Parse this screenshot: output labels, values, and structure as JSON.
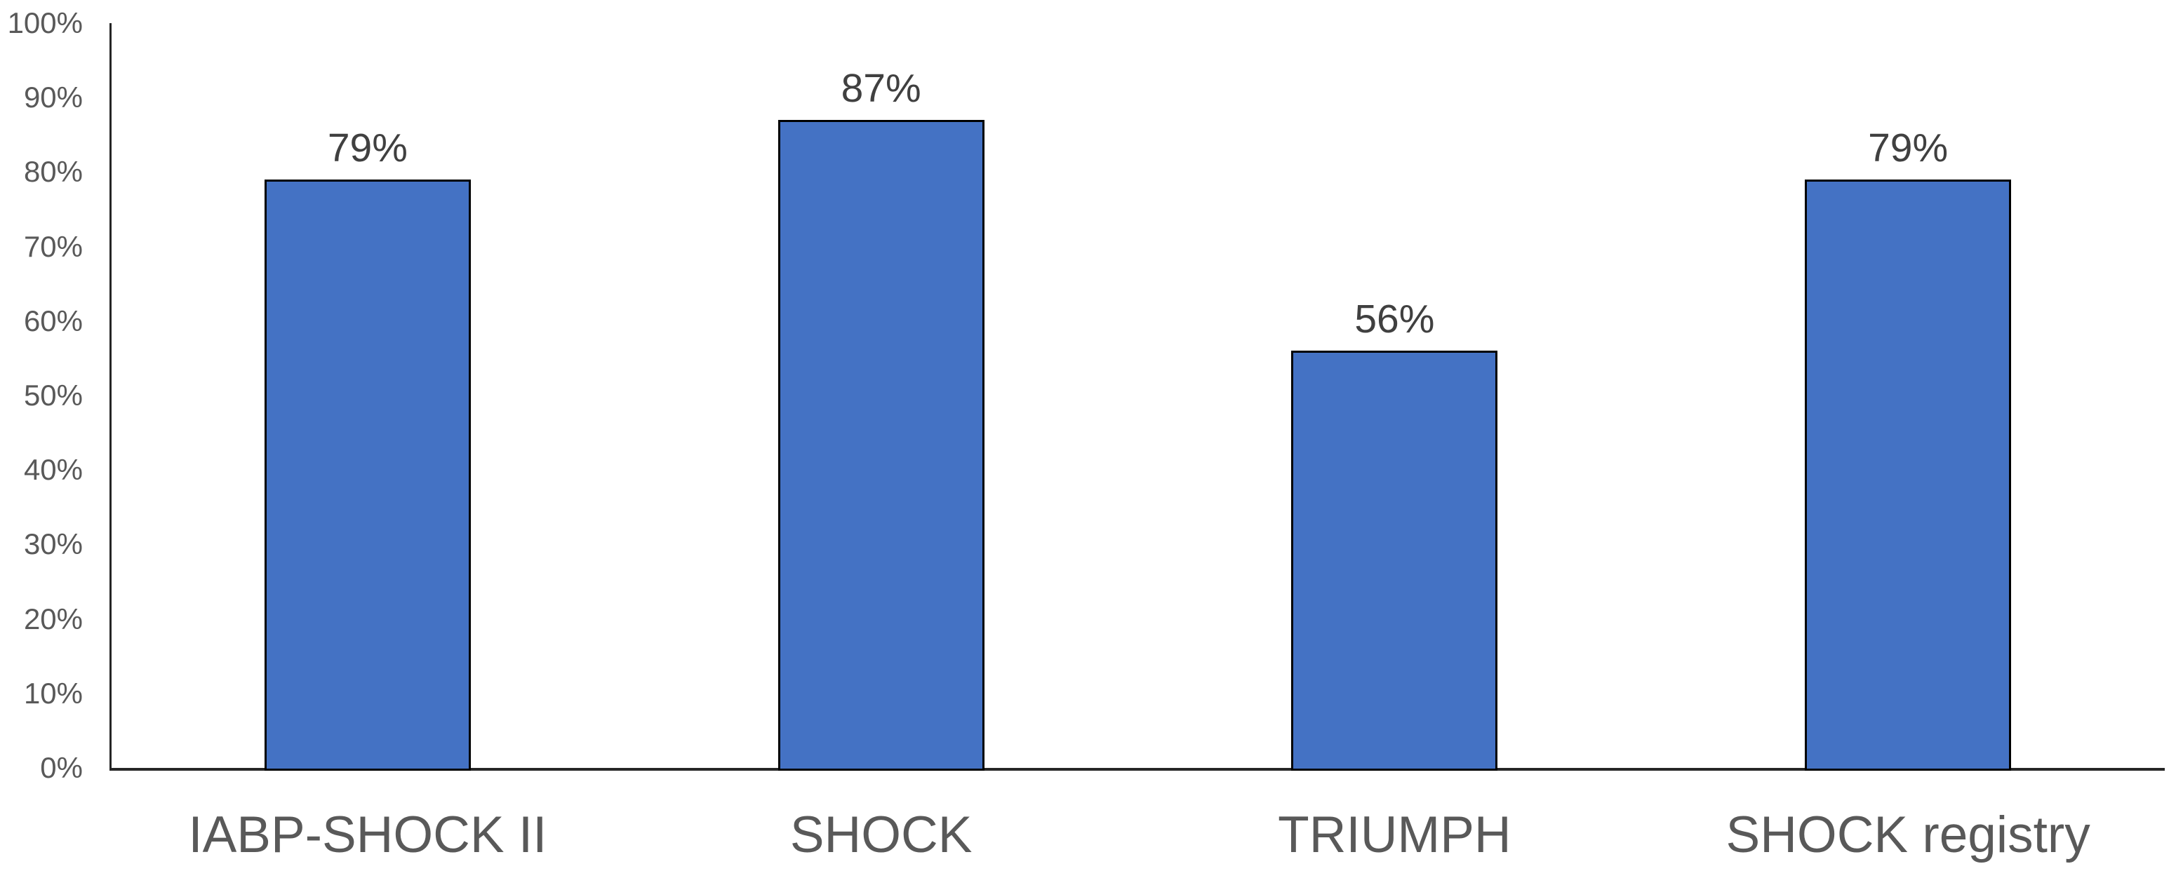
{
  "chart_data": {
    "type": "bar",
    "title": "",
    "xlabel": "",
    "ylabel": "",
    "categories": [
      "IABP-SHOCK II",
      "SHOCK",
      "TRIUMPH",
      "SHOCK registry"
    ],
    "values": [
      79,
      87,
      56,
      79
    ],
    "data_labels": [
      "79%",
      "87%",
      "56%",
      "79%"
    ],
    "ylim": [
      0,
      100
    ],
    "y_tick_step": 10,
    "y_tick_labels": [
      "0%",
      "10%",
      "20%",
      "30%",
      "40%",
      "50%",
      "60%",
      "70%",
      "80%",
      "90%",
      "100%"
    ],
    "grid": false,
    "legend": false,
    "colors": {
      "bar_fill": "#4472C4",
      "bar_border": "#000000",
      "axis_line": "#262626",
      "tick_label": "#595959",
      "category_label": "#595959",
      "data_label": "#404040",
      "background": "#ffffff"
    }
  }
}
